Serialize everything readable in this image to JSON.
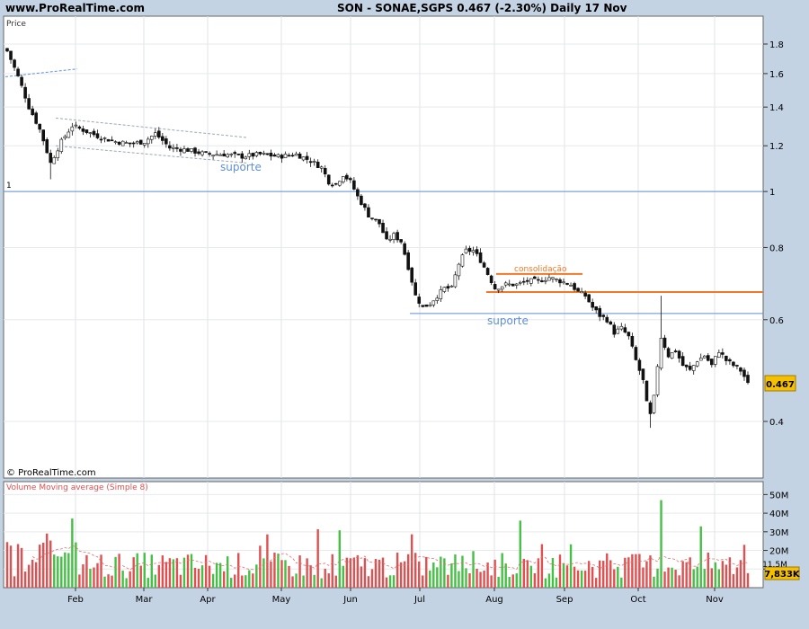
{
  "header": {
    "site": "www.ProRealTime.com",
    "title": "SON - SONAE,SGPS    0.467 (-2.30%)    Daily  17 Nov"
  },
  "chart_data": [
    {
      "type": "candlestick",
      "panel_label": "Price",
      "watermark": "© ProRealTime.com",
      "y_axis": {
        "ticks": [
          "1.8",
          "1.6",
          "1.4",
          "1.2",
          "1",
          "0.8",
          "0.6",
          "0.4"
        ],
        "ylim": [
          0.35,
          1.9
        ],
        "scale": "log"
      },
      "x_axis": {
        "ticks": [
          "Feb",
          "Mar",
          "Apr",
          "May",
          "Jun",
          "Jul",
          "Aug",
          "Sep",
          "Oct",
          "Nov"
        ]
      },
      "last_price_label": "0.467",
      "reference_level": {
        "label": "1",
        "value": 1.0
      },
      "annotations": [
        {
          "text": "suporte",
          "color": "#5f8fd8"
        },
        {
          "text": "consolidação",
          "color": "#f07828"
        },
        {
          "text": "suporte",
          "color": "#5f8fd8"
        }
      ],
      "levels": {
        "suporte_1": 1.0,
        "consolidacao_top": 0.72,
        "consolidacao_base": 0.67,
        "suporte_2": 0.615
      },
      "series_anchor_closes": [
        [
          0,
          1.75
        ],
        [
          3,
          1.58
        ],
        [
          6,
          1.4
        ],
        [
          9,
          1.28
        ],
        [
          12,
          1.12
        ],
        [
          15,
          1.22
        ],
        [
          18,
          1.3
        ],
        [
          22,
          1.27
        ],
        [
          26,
          1.24
        ],
        [
          30,
          1.22
        ],
        [
          34,
          1.21
        ],
        [
          38,
          1.22
        ],
        [
          41,
          1.26
        ],
        [
          45,
          1.19
        ],
        [
          50,
          1.18
        ],
        [
          55,
          1.16
        ],
        [
          60,
          1.16
        ],
        [
          65,
          1.15
        ],
        [
          70,
          1.16
        ],
        [
          75,
          1.15
        ],
        [
          80,
          1.16
        ],
        [
          84,
          1.13
        ],
        [
          87,
          1.1
        ],
        [
          89,
          1.04
        ],
        [
          91,
          1.03
        ],
        [
          93,
          1.07
        ],
        [
          95,
          1.04
        ],
        [
          97,
          0.98
        ],
        [
          100,
          0.91
        ],
        [
          103,
          0.88
        ],
        [
          105,
          0.82
        ],
        [
          107,
          0.84
        ],
        [
          109,
          0.82
        ],
        [
          111,
          0.74
        ],
        [
          113,
          0.66
        ],
        [
          115,
          0.63
        ],
        [
          117,
          0.64
        ],
        [
          119,
          0.66
        ],
        [
          121,
          0.68
        ],
        [
          123,
          0.68
        ],
        [
          125,
          0.75
        ],
        [
          127,
          0.79
        ],
        [
          129,
          0.79
        ],
        [
          131,
          0.76
        ],
        [
          133,
          0.72
        ],
        [
          135,
          0.68
        ],
        [
          138,
          0.69
        ],
        [
          141,
          0.69
        ],
        [
          144,
          0.7
        ],
        [
          147,
          0.7
        ],
        [
          150,
          0.71
        ],
        [
          153,
          0.7
        ],
        [
          156,
          0.69
        ],
        [
          158,
          0.67
        ],
        [
          160,
          0.66
        ],
        [
          162,
          0.63
        ],
        [
          164,
          0.61
        ],
        [
          166,
          0.6
        ],
        [
          168,
          0.57
        ],
        [
          170,
          0.58
        ],
        [
          172,
          0.56
        ],
        [
          174,
          0.51
        ],
        [
          176,
          0.47
        ],
        [
          177,
          0.43
        ],
        [
          178,
          0.41
        ],
        [
          179,
          0.44
        ],
        [
          180,
          0.5
        ],
        [
          181,
          0.56
        ],
        [
          183,
          0.52
        ],
        [
          185,
          0.53
        ],
        [
          187,
          0.5
        ],
        [
          189,
          0.49
        ],
        [
          191,
          0.51
        ],
        [
          193,
          0.52
        ],
        [
          195,
          0.5
        ],
        [
          197,
          0.53
        ],
        [
          199,
          0.51
        ],
        [
          201,
          0.5
        ],
        [
          203,
          0.49
        ],
        [
          205,
          0.467
        ]
      ]
    },
    {
      "type": "bar",
      "panel_label": "Volume Moving average (Simple 8)",
      "y_axis": {
        "ticks": [
          "50M",
          "40M",
          "30M",
          "20M",
          "10M"
        ],
        "ylim": [
          0,
          55
        ]
      },
      "last_volume_label": "7,833K",
      "ma_label": "11.5M",
      "colors": {
        "up": "#44c044",
        "down": "#e05050",
        "ma": "#e07070"
      }
    }
  ]
}
